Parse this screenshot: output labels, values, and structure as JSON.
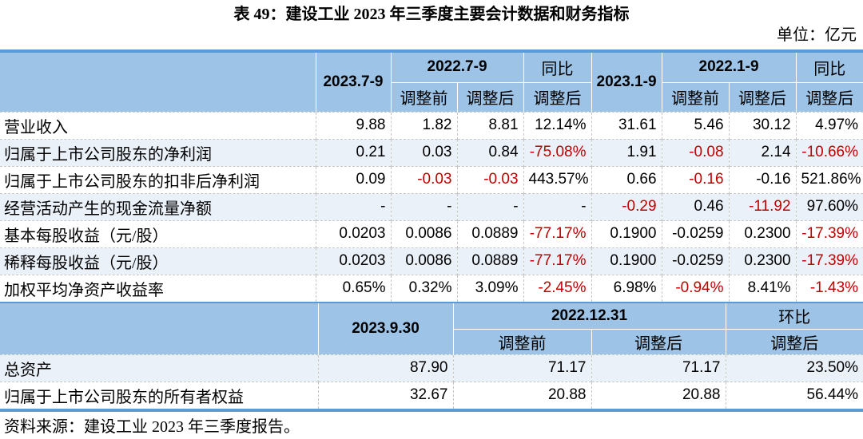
{
  "page": {
    "title": "表 49：建设工业 2023 年三季度主要会计数据和财务指标",
    "unit": "单位：亿元",
    "source": "资料来源：建设工业 2023 年三季度报告。"
  },
  "colors": {
    "header_bg": "#9DC3E6",
    "row_alt_bg": "#EAF1F9",
    "rule_blue": "#5B9BD5",
    "negative": "#C00000"
  },
  "quarter_table": {
    "header": {
      "col_2023_79": "2023.7-9",
      "col_2022_79": "2022.7-9",
      "col_yoy_q": "同比",
      "col_2023_19": "2023.1-9",
      "col_2022_19": "2022.1-9",
      "col_yoy_ytd": "同比",
      "adj_before": "调整前",
      "adj_after": "调整后"
    },
    "rows": [
      {
        "label": "营业收入",
        "cells": [
          {
            "t": "9.88"
          },
          {
            "t": "1.82"
          },
          {
            "t": "8.81"
          },
          {
            "t": "12.14%"
          },
          {
            "t": "31.61"
          },
          {
            "t": "5.46"
          },
          {
            "t": "30.12"
          },
          {
            "t": "4.97%"
          }
        ]
      },
      {
        "label": "归属于上市公司股东的净利润",
        "cells": [
          {
            "t": "0.21"
          },
          {
            "t": "0.03"
          },
          {
            "t": "0.84"
          },
          {
            "t": "-75.08%",
            "red": true
          },
          {
            "t": "1.91"
          },
          {
            "t": "-0.08",
            "red": true
          },
          {
            "t": "2.14"
          },
          {
            "t": "-10.66%",
            "red": true
          }
        ]
      },
      {
        "label": "归属于上市公司股东的扣非后净利润",
        "cells": [
          {
            "t": "0.09"
          },
          {
            "t": "-0.03",
            "red": true
          },
          {
            "t": "-0.03",
            "red": true
          },
          {
            "t": "443.57%"
          },
          {
            "t": "0.66"
          },
          {
            "t": "-0.16",
            "red": true
          },
          {
            "t": "-0.16"
          },
          {
            "t": "521.86%"
          }
        ]
      },
      {
        "label": "经营活动产生的现金流量净额",
        "cells": [
          {
            "t": "-"
          },
          {
            "t": "-"
          },
          {
            "t": "-"
          },
          {
            "t": "-"
          },
          {
            "t": "-0.29",
            "red": true
          },
          {
            "t": "0.46"
          },
          {
            "t": "-11.92",
            "red": true
          },
          {
            "t": "97.60%"
          }
        ]
      },
      {
        "label": "基本每股收益（元/股）",
        "cells": [
          {
            "t": "0.0203"
          },
          {
            "t": "0.0086"
          },
          {
            "t": "0.0889"
          },
          {
            "t": "-77.17%",
            "red": true
          },
          {
            "t": "0.1900"
          },
          {
            "t": "-0.0259"
          },
          {
            "t": "0.2300"
          },
          {
            "t": "-17.39%",
            "red": true
          }
        ]
      },
      {
        "label": "稀释每股收益（元/股）",
        "cells": [
          {
            "t": "0.0203"
          },
          {
            "t": "0.0086"
          },
          {
            "t": "0.0889"
          },
          {
            "t": "-77.17%",
            "red": true
          },
          {
            "t": "0.1900"
          },
          {
            "t": "-0.0259"
          },
          {
            "t": "0.2300"
          },
          {
            "t": "-17.39%",
            "red": true
          }
        ]
      },
      {
        "label": "加权平均净资产收益率",
        "cells": [
          {
            "t": "0.65%"
          },
          {
            "t": "0.32%"
          },
          {
            "t": "3.09%"
          },
          {
            "t": "-2.45%",
            "red": true
          },
          {
            "t": "6.98%"
          },
          {
            "t": "-0.94%",
            "red": true
          },
          {
            "t": "8.41%"
          },
          {
            "t": "-1.43%",
            "red": true
          }
        ]
      }
    ]
  },
  "balance_table": {
    "header": {
      "col_2023_930": "2023.9.30",
      "col_2022_1231": "2022.12.31",
      "col_qoq": "环比",
      "adj_before": "调整前",
      "adj_after": "调整后"
    },
    "rows": [
      {
        "label": "总资产",
        "cells": [
          {
            "t": "87.90"
          },
          {
            "t": "71.17"
          },
          {
            "t": "71.17"
          },
          {
            "t": "23.50%"
          }
        ]
      },
      {
        "label": "归属于上市公司股东的所有者权益",
        "cells": [
          {
            "t": "32.67"
          },
          {
            "t": "20.88"
          },
          {
            "t": "20.88"
          },
          {
            "t": "56.44%"
          }
        ]
      }
    ]
  }
}
